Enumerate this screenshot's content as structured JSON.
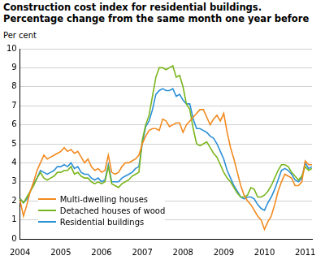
{
  "chart_data": {
    "type": "line",
    "title": "Construction cost index for residential buildings. Percentage change from the same month one year before",
    "y_label": "Per cent",
    "categories": [
      "2004",
      null,
      null,
      null,
      null,
      null,
      null,
      null,
      null,
      null,
      null,
      null,
      "2005",
      null,
      null,
      null,
      null,
      null,
      null,
      null,
      null,
      null,
      null,
      null,
      "2006",
      null,
      null,
      null,
      null,
      null,
      null,
      null,
      null,
      null,
      null,
      null,
      "2007",
      null,
      null,
      null,
      null,
      null,
      null,
      null,
      null,
      null,
      null,
      null,
      "2008",
      null,
      null,
      null,
      null,
      null,
      null,
      null,
      null,
      null,
      null,
      null,
      "2009",
      null,
      null,
      null,
      null,
      null,
      null,
      null,
      null,
      null,
      null,
      null,
      "2010",
      null,
      null,
      null,
      null,
      null,
      null,
      null,
      null,
      null,
      null,
      null,
      "2011",
      null,
      null
    ],
    "series": [
      {
        "name": "Multi-dwelling houses",
        "color": "#f28a1e",
        "values": [
          2.0,
          1.2,
          1.8,
          2.5,
          3.0,
          3.6,
          4.0,
          4.4,
          4.2,
          4.3,
          4.4,
          4.5,
          4.6,
          4.8,
          4.6,
          4.7,
          4.5,
          4.6,
          4.3,
          4.0,
          4.2,
          3.8,
          3.6,
          3.7,
          3.5,
          3.6,
          4.4,
          3.5,
          3.4,
          3.5,
          3.8,
          4.0,
          4.0,
          4.1,
          4.2,
          4.4,
          5.0,
          5.4,
          5.7,
          5.8,
          5.8,
          5.7,
          6.3,
          6.2,
          5.9,
          6.0,
          6.1,
          6.1,
          5.6,
          6.0,
          6.2,
          6.4,
          6.6,
          6.8,
          6.8,
          6.4,
          6.0,
          6.3,
          6.5,
          6.2,
          6.6,
          5.6,
          4.8,
          4.2,
          3.5,
          2.8,
          2.3,
          2.0,
          1.8,
          1.5,
          1.2,
          1.0,
          0.5,
          0.9,
          1.2,
          1.8,
          2.5,
          3.0,
          3.4,
          3.3,
          3.2,
          2.8,
          2.8,
          3.0,
          4.1,
          3.9,
          3.9
        ]
      },
      {
        "name": "Detached houses of wood",
        "color": "#7ab51d",
        "values": [
          2.1,
          1.9,
          2.2,
          2.5,
          2.8,
          3.2,
          3.5,
          3.2,
          3.1,
          3.2,
          3.3,
          3.5,
          3.5,
          3.6,
          3.6,
          3.8,
          3.4,
          3.5,
          3.3,
          3.2,
          3.2,
          3.0,
          2.9,
          3.0,
          2.9,
          3.0,
          3.8,
          2.9,
          2.8,
          2.7,
          2.9,
          3.0,
          3.1,
          3.3,
          3.4,
          3.5,
          5.2,
          6.0,
          6.5,
          7.5,
          8.5,
          9.0,
          9.0,
          8.9,
          9.0,
          9.1,
          8.5,
          8.6,
          8.0,
          7.1,
          6.8,
          5.8,
          5.0,
          4.9,
          5.0,
          5.1,
          4.8,
          4.5,
          4.3,
          3.9,
          3.5,
          3.2,
          3.0,
          2.7,
          2.4,
          2.2,
          2.2,
          2.3,
          2.7,
          2.6,
          2.2,
          2.2,
          2.3,
          2.5,
          2.8,
          3.2,
          3.6,
          3.9,
          3.9,
          3.8,
          3.5,
          3.3,
          3.1,
          3.3,
          3.8,
          3.6,
          3.7
        ]
      },
      {
        "name": "Residential buildings",
        "color": "#2b8fd6",
        "values": [
          2.1,
          1.9,
          2.1,
          2.5,
          2.9,
          3.2,
          3.6,
          3.5,
          3.4,
          3.5,
          3.6,
          3.8,
          3.8,
          3.9,
          3.8,
          4.0,
          3.7,
          3.8,
          3.5,
          3.4,
          3.4,
          3.2,
          3.1,
          3.2,
          3.0,
          3.1,
          3.9,
          3.0,
          3.0,
          3.0,
          3.2,
          3.3,
          3.4,
          3.5,
          3.7,
          3.8,
          5.0,
          5.9,
          6.2,
          6.8,
          7.6,
          7.8,
          7.9,
          7.8,
          7.8,
          7.9,
          7.5,
          7.6,
          7.3,
          7.1,
          7.1,
          6.3,
          5.8,
          5.8,
          5.7,
          5.6,
          5.4,
          5.3,
          5.0,
          4.6,
          4.2,
          3.6,
          3.2,
          2.8,
          2.5,
          2.2,
          2.1,
          2.2,
          2.2,
          2.1,
          1.8,
          1.6,
          1.5,
          1.9,
          2.2,
          2.6,
          3.1,
          3.6,
          3.7,
          3.6,
          3.4,
          3.1,
          3.0,
          3.2,
          4.0,
          3.7,
          3.8
        ]
      }
    ],
    "ylim": [
      0,
      10
    ],
    "yticks": [
      0,
      1,
      2,
      3,
      4,
      5,
      6,
      7,
      8,
      9,
      10
    ],
    "grid": true,
    "legend": "lower left"
  }
}
